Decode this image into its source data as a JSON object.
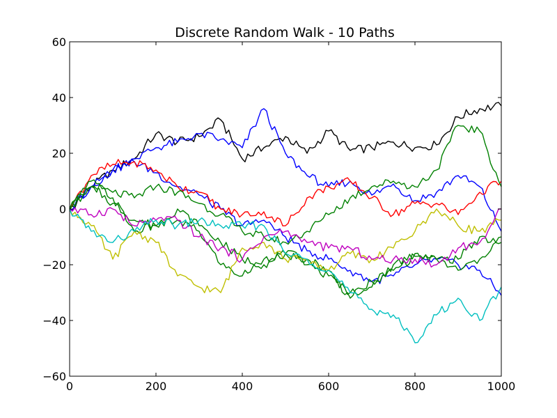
{
  "chart_data": {
    "type": "line",
    "title": "Discrete Random Walk - 10 Paths",
    "xlabel": "",
    "ylabel": "",
    "xlim": [
      0,
      1000
    ],
    "ylim": [
      -60,
      60
    ],
    "x_ticks": [
      0,
      200,
      400,
      600,
      800,
      1000
    ],
    "y_ticks": [
      -60,
      -40,
      -20,
      0,
      20,
      40,
      60
    ],
    "x_tick_labels": [
      "0",
      "200",
      "400",
      "600",
      "800",
      "1000"
    ],
    "y_tick_labels": [
      "−60",
      "−40",
      "−20",
      "0",
      "20",
      "40",
      "60"
    ],
    "grid": false,
    "legend": "none",
    "series": [
      {
        "color": "#000000",
        "x": [
          0,
          50,
          100,
          150,
          200,
          250,
          300,
          350,
          400,
          450,
          500,
          550,
          600,
          650,
          700,
          750,
          800,
          850,
          900,
          950,
          1000
        ],
        "y": [
          0,
          8,
          14,
          18,
          27,
          24,
          26,
          32,
          18,
          22,
          26,
          20,
          28,
          21,
          22,
          24,
          22,
          23,
          33,
          36,
          37
        ]
      },
      {
        "color": "#0000ff",
        "x": [
          0,
          50,
          100,
          150,
          200,
          250,
          300,
          350,
          400,
          450,
          500,
          550,
          600,
          650,
          700,
          750,
          800,
          850,
          900,
          950,
          1000
        ],
        "y": [
          0,
          8,
          14,
          18,
          22,
          24,
          27,
          25,
          22,
          36,
          20,
          12,
          8,
          10,
          5,
          9,
          3,
          6,
          12,
          8,
          -8
        ]
      },
      {
        "color": "#0000ff",
        "x": [
          0,
          50,
          100,
          150,
          200,
          250,
          300,
          350,
          400,
          450,
          500,
          550,
          600,
          650,
          700,
          750,
          800,
          850,
          900,
          950,
          1000
        ],
        "y": [
          0,
          8,
          14,
          17,
          13,
          8,
          5,
          0,
          -6,
          -4,
          -10,
          -15,
          -18,
          -22,
          -26,
          -24,
          -20,
          -18,
          -20,
          -22,
          -31
        ]
      },
      {
        "color": "#ff0000",
        "x": [
          0,
          50,
          100,
          150,
          200,
          250,
          300,
          350,
          400,
          450,
          500,
          550,
          600,
          650,
          700,
          750,
          800,
          850,
          900,
          950,
          1000
        ],
        "y": [
          0,
          12,
          16,
          17,
          14,
          8,
          6,
          0,
          -2,
          -1,
          -6,
          4,
          8,
          10,
          4,
          -2,
          2,
          2,
          -2,
          6,
          10
        ]
      },
      {
        "color": "#008000",
        "x": [
          0,
          50,
          100,
          150,
          200,
          250,
          300,
          350,
          400,
          450,
          500,
          550,
          600,
          650,
          700,
          750,
          800,
          850,
          900,
          950,
          1000
        ],
        "y": [
          0,
          8,
          6,
          4,
          8,
          6,
          2,
          -2,
          -8,
          -10,
          -12,
          -8,
          -2,
          4,
          8,
          10,
          8,
          14,
          30,
          28,
          8
        ]
      },
      {
        "color": "#008000",
        "x": [
          0,
          50,
          100,
          150,
          200,
          250,
          300,
          350,
          400,
          450,
          500,
          550,
          600,
          650,
          700,
          750,
          800,
          850,
          900,
          950,
          1000
        ],
        "y": [
          0,
          10,
          4,
          -8,
          -6,
          -4,
          -8,
          -20,
          -24,
          -18,
          -16,
          -20,
          -24,
          -30,
          -28,
          -20,
          -16,
          -18,
          -18,
          -10,
          -12
        ]
      },
      {
        "color": "#008000",
        "x": [
          0,
          50,
          100,
          150,
          200,
          250,
          300,
          350,
          400,
          450,
          500,
          550,
          600,
          650,
          700,
          750,
          800,
          850,
          900,
          950,
          1000
        ],
        "y": [
          0,
          8,
          2,
          -4,
          -6,
          0,
          -6,
          -12,
          -18,
          -20,
          -16,
          -18,
          -22,
          -32,
          -26,
          -22,
          -17,
          -18,
          -22,
          -18,
          -10
        ]
      },
      {
        "color": "#bfbf00",
        "x": [
          0,
          50,
          100,
          150,
          200,
          250,
          300,
          350,
          400,
          450,
          500,
          550,
          600,
          650,
          700,
          750,
          800,
          850,
          900,
          950,
          1000
        ],
        "y": [
          0,
          -6,
          -18,
          -8,
          -12,
          -24,
          -28,
          -30,
          -14,
          -12,
          -18,
          -18,
          -22,
          -16,
          -18,
          -14,
          -8,
          0,
          -6,
          -8,
          -4
        ]
      },
      {
        "color": "#bf00bf",
        "x": [
          0,
          50,
          100,
          150,
          200,
          250,
          300,
          350,
          400,
          450,
          500,
          550,
          600,
          650,
          700,
          750,
          800,
          850,
          900,
          950,
          1000
        ],
        "y": [
          0,
          -2,
          0,
          -6,
          -4,
          -4,
          -10,
          -14,
          -18,
          -10,
          -8,
          -12,
          -14,
          -14,
          -18,
          -18,
          -18,
          -20,
          -14,
          -12,
          0
        ]
      },
      {
        "color": "#00bfbf",
        "x": [
          0,
          50,
          100,
          150,
          200,
          250,
          300,
          350,
          400,
          450,
          500,
          550,
          600,
          650,
          700,
          750,
          800,
          850,
          900,
          950,
          1000
        ],
        "y": [
          0,
          -8,
          -12,
          -8,
          -4,
          -6,
          -4,
          -6,
          -6,
          -6,
          -16,
          -18,
          -22,
          -30,
          -36,
          -38,
          -48,
          -38,
          -32,
          -40,
          -28
        ]
      }
    ]
  }
}
